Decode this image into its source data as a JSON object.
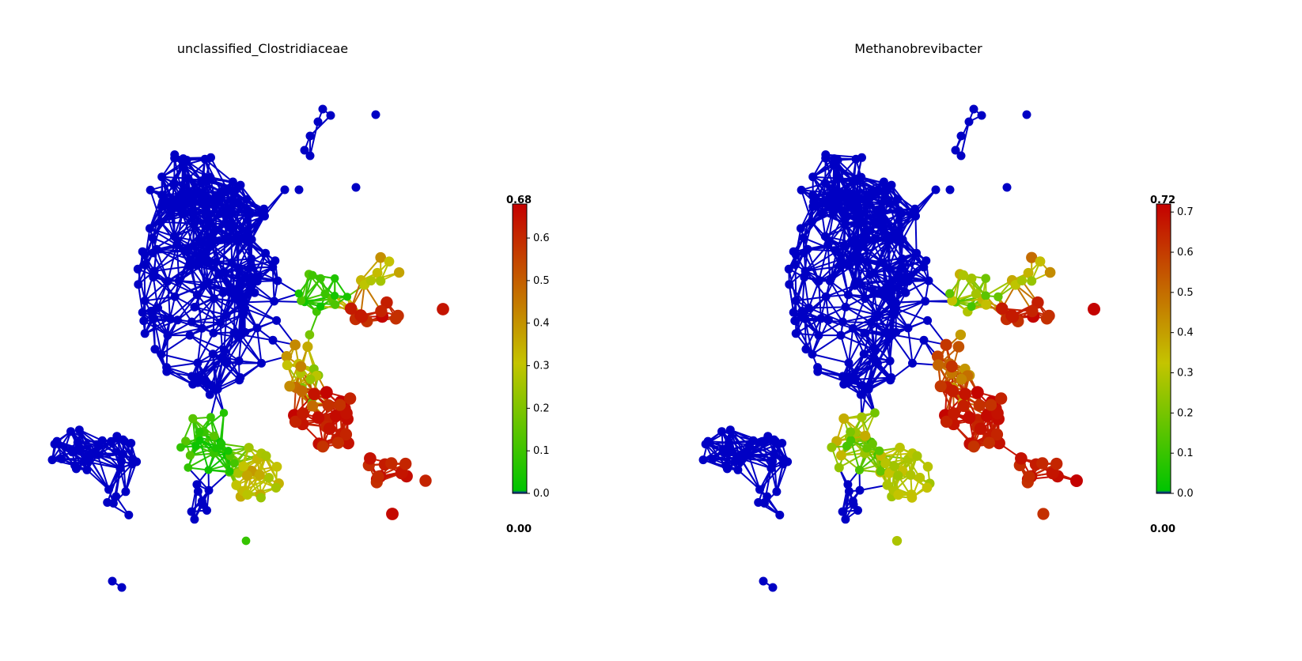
{
  "panels": [
    {
      "title": "unclassified_Clostridiaceae",
      "colorbar": {
        "max_label": "0.68",
        "min_label": "0.00",
        "max": 0.68,
        "ticks": [
          "0.0",
          "0.1",
          "0.2",
          "0.3",
          "0.4",
          "0.5",
          "0.6"
        ]
      }
    },
    {
      "title": "Methanobrevibacter",
      "colorbar": {
        "max_label": "0.72",
        "min_label": "0.00",
        "max": 0.72,
        "ticks": [
          "0.0",
          "0.1",
          "0.2",
          "0.3",
          "0.4",
          "0.5",
          "0.6",
          "0.7"
        ]
      }
    }
  ],
  "colors": {
    "blue": "#0000c4",
    "green": "#00c400",
    "yellow": "#c4c400",
    "red": "#c40000"
  }
}
